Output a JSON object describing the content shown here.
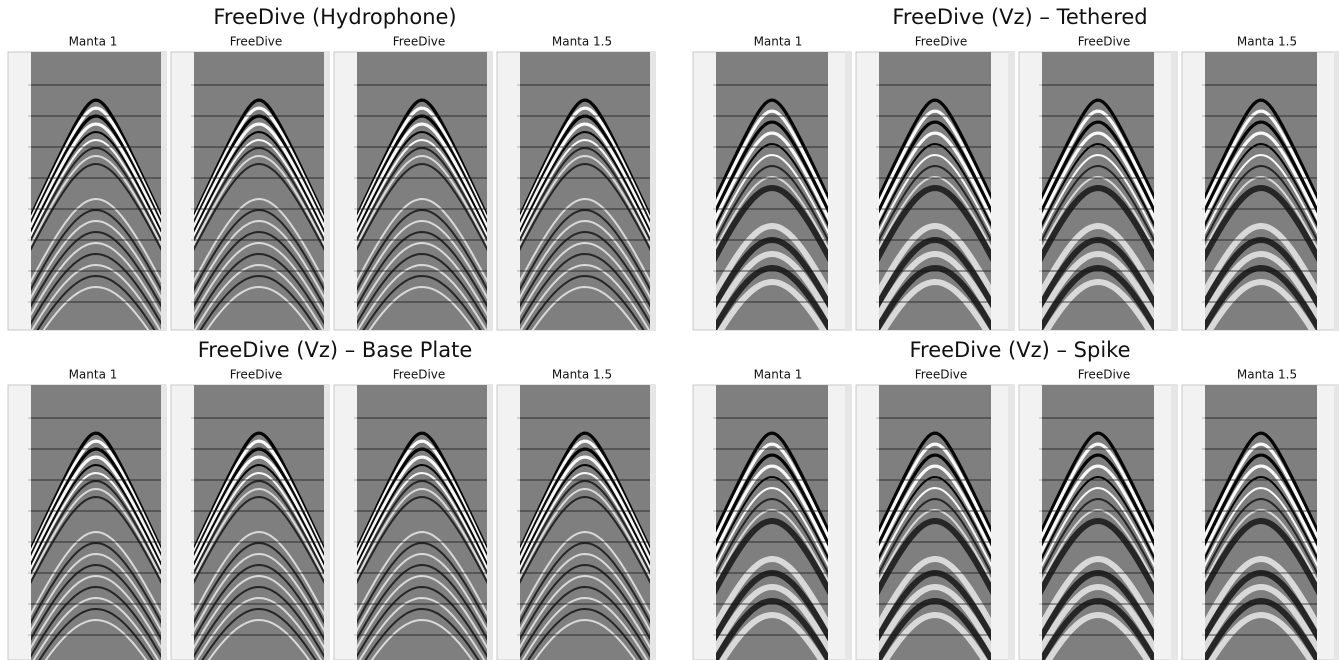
{
  "panels": [
    {
      "title": "FreeDive (Hydrophone)",
      "columns": [
        "Manta 1",
        "FreeDive",
        "FreeDive",
        "Manta 1.5"
      ]
    },
    {
      "title": "FreeDive (Vz) – Tethered",
      "columns": [
        "Manta 1",
        "FreeDive",
        "FreeDive",
        "Manta 1.5"
      ]
    },
    {
      "title": "FreeDive (Vz) – Base Plate",
      "columns": [
        "Manta 1",
        "FreeDive",
        "FreeDive",
        "Manta 1.5"
      ]
    },
    {
      "title": "FreeDive (Vz) – Spike",
      "columns": [
        "Manta 1",
        "FreeDive",
        "FreeDive",
        "Manta 1.5"
      ]
    }
  ]
}
